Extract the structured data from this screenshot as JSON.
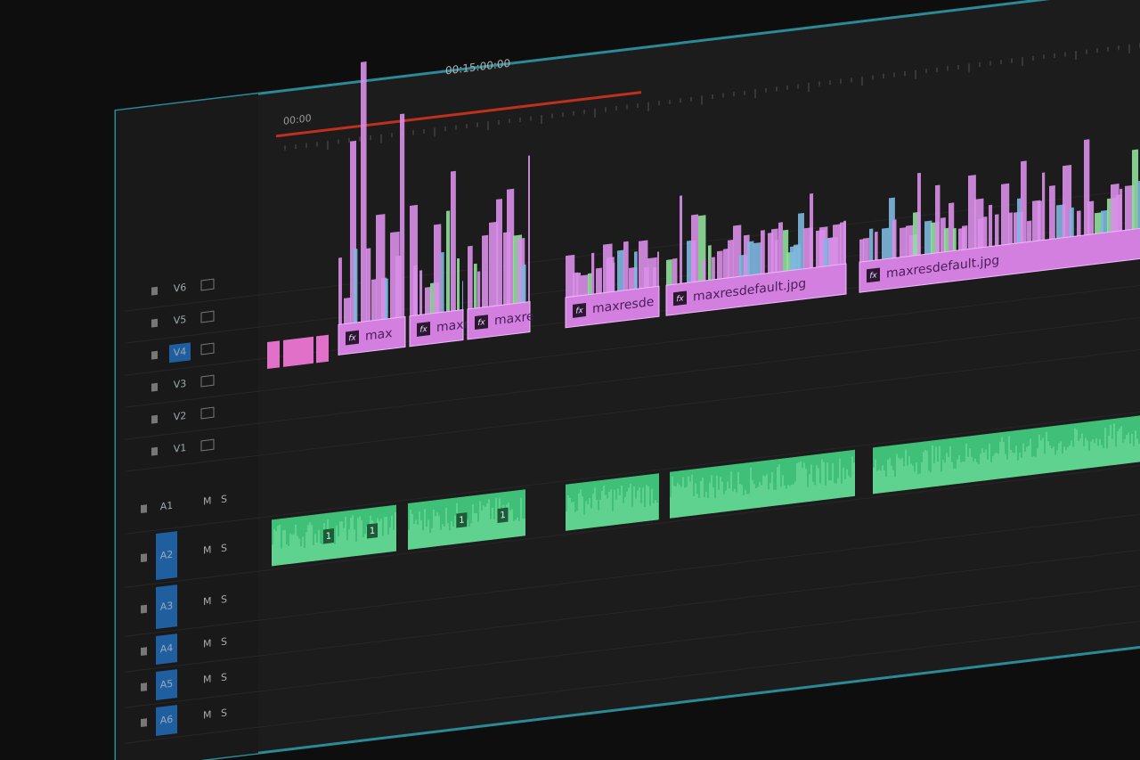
{
  "timeline": {
    "timecode": "00:15:00:00",
    "ruler_start": "00:00",
    "video_tracks": [
      "V6",
      "V5",
      "V4",
      "V3",
      "V2",
      "V1"
    ],
    "audio_tracks": [
      "A1",
      "A2",
      "A3",
      "A4",
      "A5",
      "A6"
    ],
    "mute": "M",
    "solo": "S",
    "fx_badge": "fx",
    "video_clips": [
      "max",
      "maxr",
      "maxre",
      "maxresde",
      "maxresdefault.jpg",
      "maxresdefault.jpg"
    ],
    "audio_clip_label": "1"
  }
}
